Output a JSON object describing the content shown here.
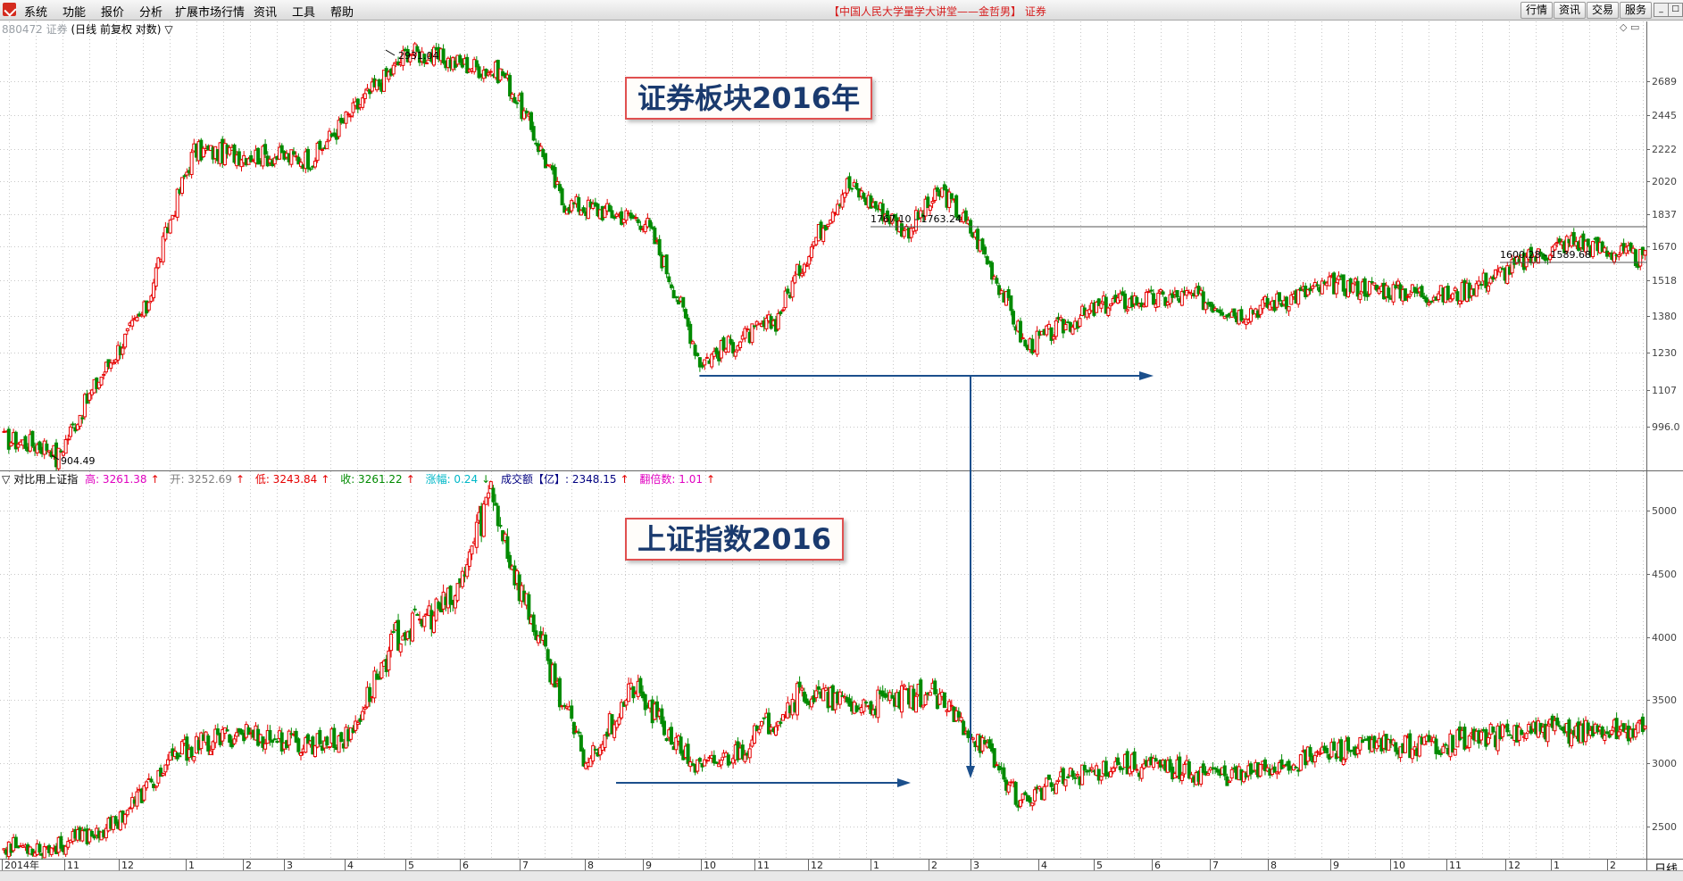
{
  "menu": {
    "items": [
      "系统",
      "功能",
      "报价",
      "分析",
      "扩展市场行情",
      "资讯",
      "工具",
      "帮助"
    ],
    "title": "【中国人民大学量学大讲堂——金哲男】 证券",
    "right_buttons": [
      "行情",
      "资讯",
      "交易",
      "服务"
    ]
  },
  "upper_panel": {
    "code": "880472",
    "title_name": "证券",
    "title_mode": "(日线 前复权 对数)",
    "title_arrow": "▽",
    "annotation": "证券板块2016年",
    "max_label": "2931.04",
    "min_label": "904.49",
    "range_label_1": "1767.10 - 1763.24",
    "range_label_2": "1600.28 - 1589.68",
    "y_ticks": [
      "2689",
      "2445",
      "2222",
      "2020",
      "1837",
      "1670",
      "1518",
      "1380",
      "1230",
      "1107",
      "996.0"
    ]
  },
  "lower_panel": {
    "prefix": "▽",
    "name": "对比用上证指",
    "high_label": "高: 3261.38",
    "high_arrow": "↑",
    "open_label": "开: 3252.69",
    "open_arrow": "↑",
    "low_label": "低: 3243.84",
    "low_arrow": "↑",
    "close_label": "收: 3261.22",
    "close_arrow": "↑",
    "chg_label": "涨幅: 0.24",
    "chg_arrow": "↓",
    "vol_label": "成交额【亿】: 2348.15",
    "vol_arrow": "↑",
    "mult_label": "翻倍数: 1.01",
    "mult_arrow": "↑",
    "annotation": "上证指数2016",
    "y_ticks": [
      "5000",
      "4500",
      "4000",
      "3500",
      "3000",
      "2500"
    ]
  },
  "x_axis": {
    "labels": [
      "2014年",
      "11",
      "12",
      "1",
      "2",
      "3",
      "4",
      "5",
      "6",
      "7",
      "8",
      "9",
      "10",
      "11",
      "12",
      "1",
      "2",
      "3",
      "4",
      "5",
      "6",
      "7",
      "8",
      "9",
      "10",
      "11",
      "12",
      "1",
      "2"
    ]
  },
  "period_label": "日线",
  "colors": {
    "up": "#e60000",
    "down": "#008a00",
    "arrow": "#1b4f8c",
    "grid": "#c8c8c8"
  },
  "chart_data": [
    {
      "type": "candlestick",
      "title": "证券板块2016年",
      "scale": "log",
      "ylim": [
        900,
        2950
      ],
      "key_points": [
        {
          "label": "start",
          "value": 950
        },
        {
          "label": "low",
          "value": 904.49
        },
        {
          "label": "rise",
          "value": 2300
        },
        {
          "label": "high",
          "value": 2931.04
        },
        {
          "label": "crash",
          "value": 1300
        },
        {
          "label": "rebound",
          "value": 1960
        },
        {
          "label": "2016 low",
          "value": 1200
        },
        {
          "label": "range",
          "value": 1767.1
        },
        {
          "label": "end",
          "value": 1600.28
        }
      ]
    },
    {
      "type": "candlestick",
      "title": "上证指数2016",
      "ylim": [
        2400,
        5200
      ],
      "key_points": [
        {
          "label": "start",
          "value": 2350
        },
        {
          "label": "rise",
          "value": 3300
        },
        {
          "label": "high",
          "value": 5178
        },
        {
          "label": "crash",
          "value": 3000
        },
        {
          "label": "rebound",
          "value": 3600
        },
        {
          "label": "2016 low",
          "value": 2640
        },
        {
          "label": "end",
          "value": 3261.22
        }
      ]
    }
  ]
}
